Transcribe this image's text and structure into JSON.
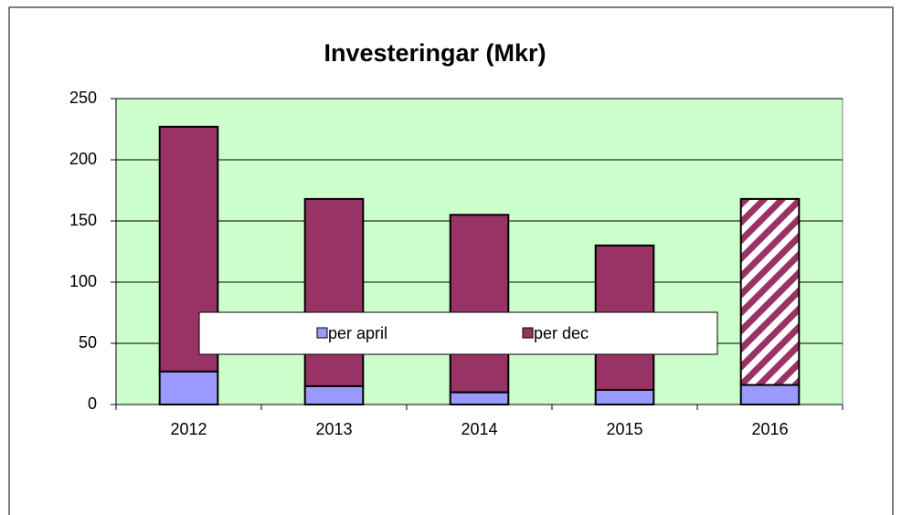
{
  "chart_data": {
    "type": "stacked_bar",
    "title": "Investeringar (Mkr)",
    "categories": [
      "2012",
      "2013",
      "2014",
      "2015",
      "2016"
    ],
    "series": [
      {
        "name": "per april",
        "color": "#9999ff",
        "values": [
          27,
          15,
          10,
          12,
          16
        ]
      },
      {
        "name": "per dec",
        "color": "#993366",
        "values": [
          200,
          153,
          145,
          118,
          152
        ],
        "hatched": [
          false,
          false,
          false,
          false,
          true
        ]
      }
    ],
    "ylim": [
      0,
      250
    ],
    "yticks": [
      0,
      50,
      100,
      150,
      200,
      250
    ],
    "grid": true,
    "plot_background": "#ccffcc",
    "legend": "bottom"
  }
}
